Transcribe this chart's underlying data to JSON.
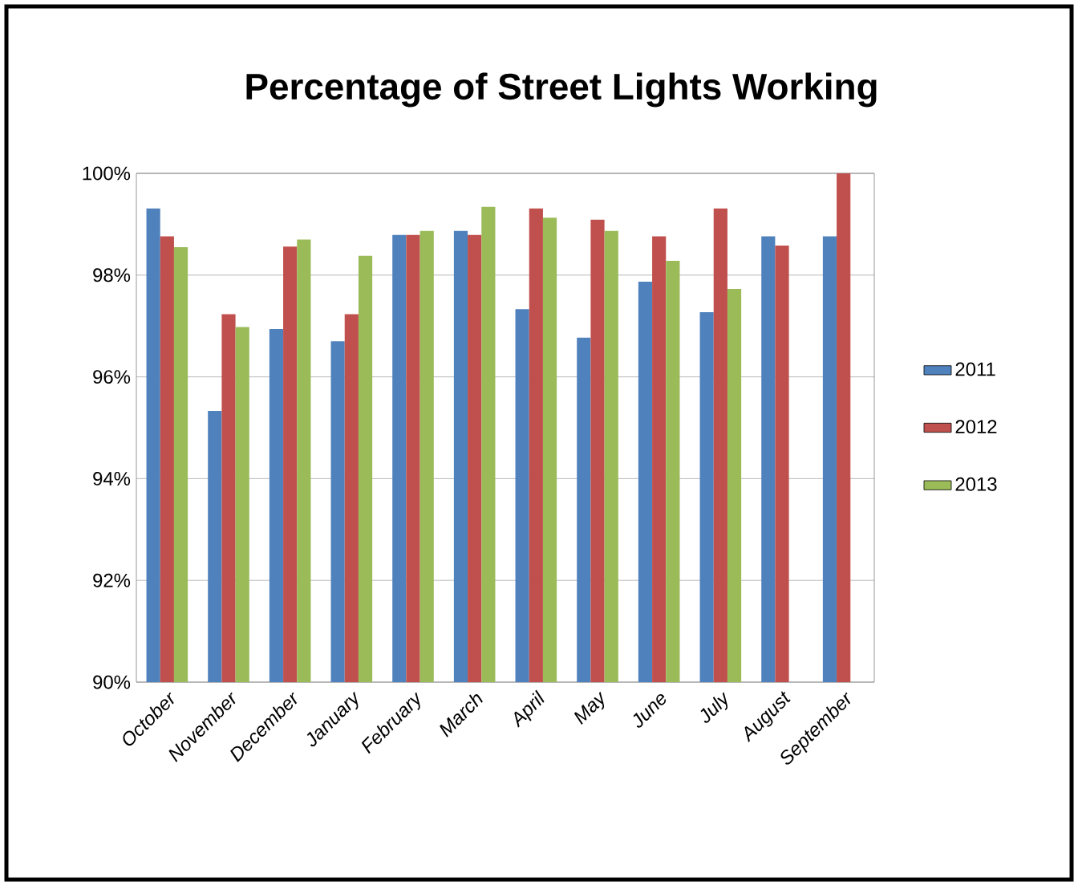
{
  "chart_data": {
    "type": "bar",
    "title": "Percentage of Street Lights Working",
    "categories": [
      "October",
      "November",
      "December",
      "January",
      "February",
      "March",
      "April",
      "May",
      "June",
      "July",
      "August",
      "September"
    ],
    "series": [
      {
        "name": "2011",
        "color": "#4f81bd",
        "values": [
          99.31,
          95.33,
          96.94,
          96.7,
          98.79,
          98.87,
          97.33,
          96.77,
          97.87,
          97.27,
          98.76,
          98.76
        ]
      },
      {
        "name": "2012",
        "color": "#c0504d",
        "values": [
          98.76,
          97.23,
          98.56,
          97.23,
          98.79,
          98.79,
          99.31,
          99.09,
          98.76,
          99.31,
          98.58,
          100
        ]
      },
      {
        "name": "2013",
        "color": "#9bbb59",
        "values": [
          98.55,
          96.98,
          98.7,
          98.38,
          98.87,
          99.34,
          99.13,
          98.87,
          98.28,
          97.73,
          null,
          null
        ]
      }
    ],
    "ylim": [
      90,
      100
    ],
    "yticks": [
      {
        "value": 90,
        "label": "90%"
      },
      {
        "value": 92,
        "label": "92%"
      },
      {
        "value": 94,
        "label": "94%"
      },
      {
        "value": 96,
        "label": "96%"
      },
      {
        "value": 98,
        "label": "98%"
      },
      {
        "value": 100,
        "label": "100%"
      }
    ],
    "grid": "y",
    "legend": "right"
  }
}
